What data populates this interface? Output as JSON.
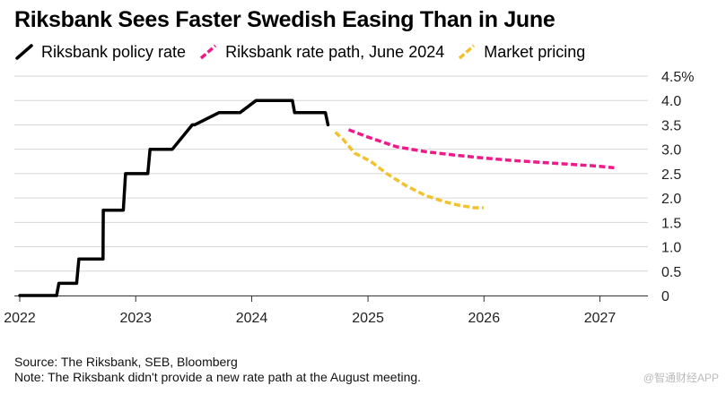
{
  "chart_data": {
    "type": "line",
    "title": "Riksbank Sees Faster Swedish Easing Than in June",
    "xlabel": "",
    "ylabel": "",
    "ylim": [
      0,
      4.5
    ],
    "xlim": [
      "2021-12-15",
      "2027-06-01"
    ],
    "y_ticks": [
      "0",
      "0.5",
      "1.0",
      "1.5",
      "2.0",
      "2.5",
      "3.0",
      "3.5",
      "4.0",
      "4.5%"
    ],
    "x_ticks": [
      "2022",
      "2023",
      "2024",
      "2025",
      "2026",
      "2027"
    ],
    "legend_position": "top-left",
    "grid": "horizontal",
    "series": [
      {
        "name": "Riksbank policy rate",
        "color": "#000000",
        "style": "solid",
        "points": [
          [
            "2022-01-01",
            0
          ],
          [
            "2022-04-27",
            0
          ],
          [
            "2022-05-04",
            0.25
          ],
          [
            "2022-06-29",
            0.25
          ],
          [
            "2022-07-06",
            0.75
          ],
          [
            "2022-09-20",
            0.75
          ],
          [
            "2022-09-21",
            1.75
          ],
          [
            "2022-11-23",
            1.75
          ],
          [
            "2022-11-30",
            2.5
          ],
          [
            "2023-02-08",
            2.5
          ],
          [
            "2023-02-15",
            3.0
          ],
          [
            "2023-04-26",
            3.0
          ],
          [
            "2023-06-28",
            3.5
          ],
          [
            "2023-07-05",
            3.5
          ],
          [
            "2023-09-20",
            3.75
          ],
          [
            "2023-09-27",
            3.75
          ],
          [
            "2023-11-25",
            3.75
          ],
          [
            "2024-01-15",
            4.0
          ],
          [
            "2024-05-08",
            4.0
          ],
          [
            "2024-05-15",
            3.75
          ],
          [
            "2024-08-20",
            3.75
          ],
          [
            "2024-08-28",
            3.5
          ]
        ]
      },
      {
        "name": "Riksbank rate path, June 2024",
        "color": "#ee1a8a",
        "style": "dashed",
        "points": [
          [
            "2024-11-01",
            3.4
          ],
          [
            "2025-01-01",
            3.25
          ],
          [
            "2025-04-01",
            3.05
          ],
          [
            "2025-07-01",
            2.95
          ],
          [
            "2025-10-01",
            2.88
          ],
          [
            "2026-01-01",
            2.82
          ],
          [
            "2026-04-01",
            2.77
          ],
          [
            "2026-07-01",
            2.73
          ],
          [
            "2026-10-01",
            2.69
          ],
          [
            "2027-01-01",
            2.65
          ],
          [
            "2027-02-15",
            2.62
          ]
        ]
      },
      {
        "name": "Market pricing",
        "color": "#f2c12e",
        "style": "dashed",
        "points": [
          [
            "2024-09-20",
            3.35
          ],
          [
            "2024-10-15",
            3.2
          ],
          [
            "2024-11-20",
            2.92
          ],
          [
            "2025-01-10",
            2.75
          ],
          [
            "2025-03-01",
            2.5
          ],
          [
            "2025-05-01",
            2.25
          ],
          [
            "2025-07-01",
            2.05
          ],
          [
            "2025-09-01",
            1.92
          ],
          [
            "2025-10-15",
            1.85
          ],
          [
            "2025-12-01",
            1.8
          ],
          [
            "2025-12-31",
            1.8
          ]
        ]
      }
    ]
  },
  "footer": {
    "source": "Source: The Riksbank, SEB, Bloomberg",
    "note": "Note: The Riksbank didn't provide a new rate path at the August meeting.",
    "watermark": "@智通财经APP"
  }
}
